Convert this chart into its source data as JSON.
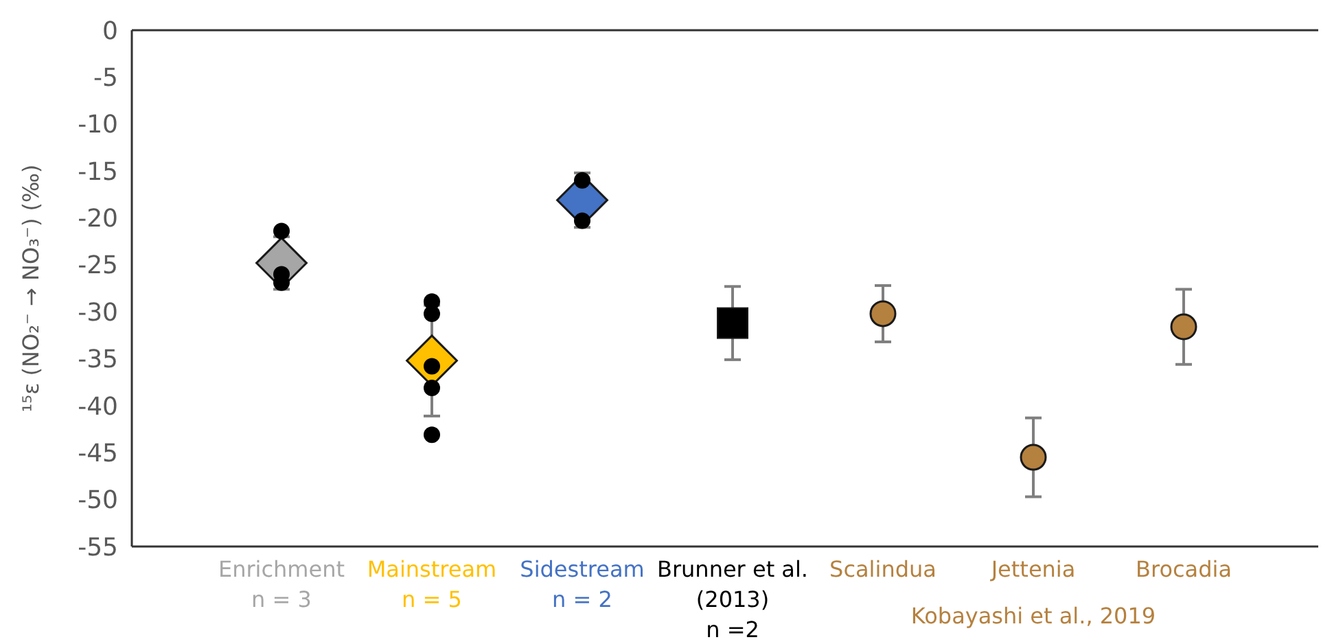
{
  "chart_data": {
    "type": "scatter",
    "ylabel": "¹⁵ε (NO₂⁻ → NO₃⁻) (‰)",
    "categories": [
      "Enrichment\nn = 3",
      "Mainstream\nn = 5",
      "Sidestream\nn = 2",
      "Brunner et al.\n(2013)\nn =2",
      "Scalindua",
      "Jettenia",
      "Brocadia"
    ],
    "series": [
      {
        "colors": [
          "#a6a6a6",
          "#ffc000",
          "#4472c4",
          null,
          null,
          null,
          null
        ],
        "marker": "diamond",
        "values": [
          -24.8,
          -35.2,
          -18.1,
          null,
          null,
          null,
          null
        ],
        "errors": [
          2.8,
          5.9,
          2.9,
          null,
          null,
          null,
          null
        ]
      },
      {
        "color": "#000000",
        "marker": "square",
        "values": [
          null,
          null,
          null,
          -31.2,
          null,
          null,
          null
        ],
        "errors": [
          null,
          null,
          null,
          3.9,
          null,
          null,
          null
        ]
      },
      {
        "color": "#b5813f",
        "marker": "circle",
        "values": [
          null,
          null,
          null,
          null,
          -30.2,
          -45.5,
          -31.6
        ],
        "errors": [
          null,
          null,
          null,
          null,
          3,
          4.2,
          4
        ]
      },
      {
        "color": "#000000",
        "marker": "circle",
        "x": [
          "Enrichment\nn = 3",
          "Enrichment\nn = 3",
          "Enrichment\nn = 3",
          "Mainstream\nn = 5",
          "Mainstream\nn = 5",
          "Mainstream\nn = 5",
          "Mainstream\nn = 5",
          "Mainstream\nn = 5",
          "Sidestream\nn = 2",
          "Sidestream\nn = 2"
        ],
        "values": [
          -21.4,
          -26.0,
          -26.9,
          -28.9,
          -30.2,
          -35.8,
          -38.1,
          -43.1,
          -16.0,
          -20.3
        ]
      }
    ],
    "ylim": [
      -55,
      0
    ],
    "yticks": [
      0,
      -5,
      -10,
      -15,
      -20,
      -25,
      -30,
      -35,
      -40,
      -45,
      -50,
      -55
    ],
    "grid": false,
    "annotations": [
      "Kobayashi et al., 2019"
    ]
  }
}
